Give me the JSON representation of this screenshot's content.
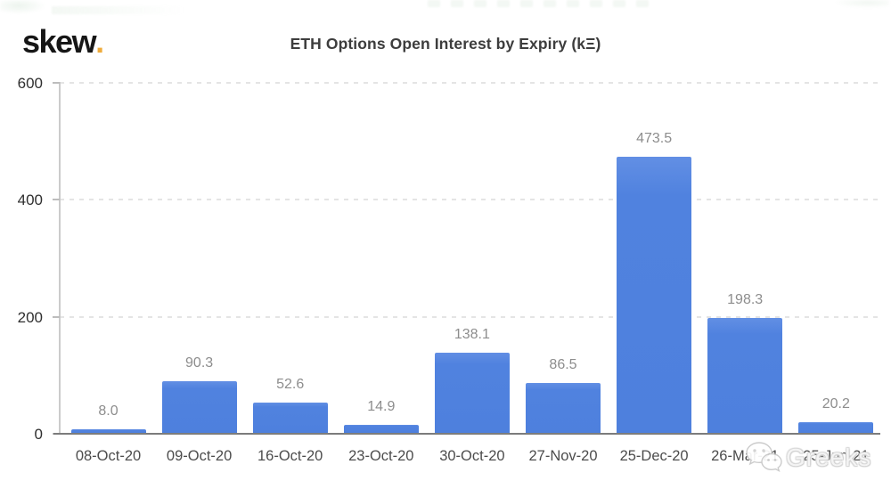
{
  "logo": {
    "text": "skew",
    "dot": "."
  },
  "title": "ETH Options Open Interest by Expiry (kΞ)",
  "watermark": {
    "text": "Greeks",
    "icon": "wechat-icon"
  },
  "colors": {
    "bar": "#5082df",
    "logo_dot": "#efac3d",
    "gridline": "#e4e4e4",
    "axis_line": "#cbcbcb",
    "baseline": "#7c7c7c",
    "value_label": "#8d8d8d",
    "x_label": "#4c4c4c",
    "y_label": "#2f2f2f"
  },
  "chart_data": {
    "type": "bar",
    "title": "ETH Options Open Interest by Expiry (kΞ)",
    "categories": [
      "08-Oct-20",
      "09-Oct-20",
      "16-Oct-20",
      "23-Oct-20",
      "30-Oct-20",
      "27-Nov-20",
      "25-Dec-20",
      "26-Mar-21",
      "25-Jun-21"
    ],
    "values": [
      8.0,
      90.3,
      52.6,
      14.9,
      138.1,
      86.5,
      473.5,
      198.3,
      20.2
    ],
    "value_labels": [
      "8.0",
      "90.3",
      "52.6",
      "14.9",
      "138.1",
      "86.5",
      "473.5",
      "198.3",
      "20.2"
    ],
    "xlabel": "",
    "ylabel": "",
    "ylim": [
      0,
      600
    ],
    "yticks": [
      0,
      200,
      400,
      600
    ],
    "grid": "horizontal-dashed",
    "legend": "none",
    "bar_color": "#5082df"
  }
}
